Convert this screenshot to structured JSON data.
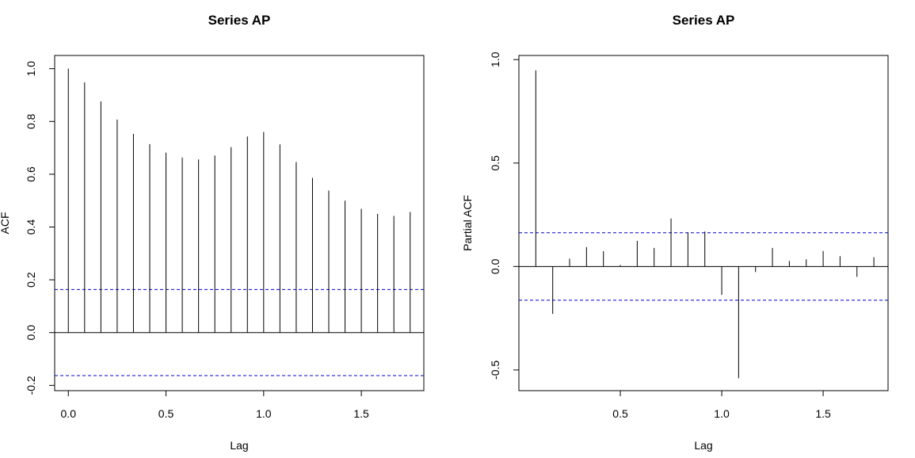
{
  "chart_data": [
    {
      "type": "bar",
      "title": "Series  AP",
      "xlabel": "Lag",
      "ylabel": "ACF",
      "xlim": [
        -0.07,
        1.82
      ],
      "ylim": [
        -0.22,
        1.05
      ],
      "x_ticks": [
        0.0,
        0.5,
        1.0,
        1.5
      ],
      "x_tick_labels": [
        "0.0",
        "0.5",
        "1.0",
        "1.5"
      ],
      "y_ticks": [
        -0.2,
        0.0,
        0.2,
        0.4,
        0.6,
        0.8,
        1.0
      ],
      "y_tick_labels": [
        "-0.2",
        "0.0",
        "0.2",
        "0.4",
        "0.6",
        "0.8",
        "1.0"
      ],
      "zero_line": true,
      "conf_bounds": [
        0.163,
        -0.163
      ],
      "conf_color": "#0000cc",
      "x": [
        0.0,
        0.0833,
        0.1667,
        0.25,
        0.3333,
        0.4167,
        0.5,
        0.5833,
        0.6667,
        0.75,
        0.8333,
        0.9167,
        1.0,
        1.0833,
        1.1667,
        1.25,
        1.3333,
        1.4167,
        1.5,
        1.5833,
        1.6667,
        1.75
      ],
      "values": [
        1.0,
        0.948,
        0.876,
        0.807,
        0.753,
        0.714,
        0.682,
        0.663,
        0.656,
        0.671,
        0.703,
        0.743,
        0.76,
        0.713,
        0.646,
        0.586,
        0.538,
        0.5,
        0.469,
        0.45,
        0.442,
        0.457
      ]
    },
    {
      "type": "bar",
      "title": "Series  AP",
      "xlabel": "Lag",
      "ylabel": "Partial ACF",
      "xlim": [
        0.0,
        1.82
      ],
      "ylim": [
        -0.6,
        1.02
      ],
      "x_ticks": [
        0.5,
        1.0,
        1.5
      ],
      "x_tick_labels": [
        "0.5",
        "1.0",
        "1.5"
      ],
      "y_ticks": [
        -0.5,
        0.0,
        0.5,
        1.0
      ],
      "y_tick_labels": [
        "-0.5",
        "0.0",
        "0.5",
        "1.0"
      ],
      "zero_line": true,
      "conf_bounds": [
        0.163,
        -0.163
      ],
      "conf_color": "#0000cc",
      "x": [
        0.0833,
        0.1667,
        0.25,
        0.3333,
        0.4167,
        0.5,
        0.5833,
        0.6667,
        0.75,
        0.8333,
        0.9167,
        1.0,
        1.0833,
        1.1667,
        1.25,
        1.3333,
        1.4167,
        1.5,
        1.5833,
        1.6667,
        1.75
      ],
      "values": [
        0.948,
        -0.229,
        0.038,
        0.094,
        0.074,
        0.007,
        0.124,
        0.09,
        0.232,
        0.165,
        0.169,
        -0.137,
        -0.54,
        -0.027,
        0.09,
        0.027,
        0.035,
        0.075,
        0.05,
        -0.05,
        0.045
      ]
    }
  ]
}
